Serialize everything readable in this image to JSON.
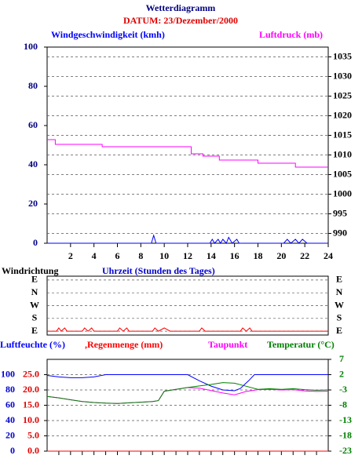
{
  "chart_data": [
    {
      "type": "line",
      "title": "Wetterdiagramm",
      "subtitle": "DATUM: 23/Dezember/2000",
      "xlim": [
        0,
        24
      ],
      "xticks": [
        2,
        4,
        6,
        8,
        10,
        12,
        14,
        16,
        18,
        20,
        22,
        24
      ],
      "xtick_labels": true,
      "ylim": [
        0,
        100
      ],
      "yticks": [
        0,
        20,
        40,
        60,
        80,
        100
      ],
      "y2lim": [
        987.5,
        1037.5
      ],
      "y2ticks": [
        990,
        995,
        1000,
        1005,
        1010,
        1015,
        1020,
        1025,
        1030,
        1035
      ],
      "grid": "y2",
      "series": [
        {
          "name": "Windgeschwindigkeit (kmh)",
          "color": "#0000ff",
          "axis": "y",
          "x": [
            0,
            8.9,
            9.1,
            9.3,
            13.9,
            14.1,
            14.3,
            14.6,
            14.8,
            15,
            15.3,
            15.5,
            15.8,
            16.2,
            16.4,
            20.2,
            20.5,
            20.8,
            21.2,
            21.5,
            21.8,
            22.2,
            24
          ],
          "values": [
            0,
            0,
            4,
            0,
            0,
            2,
            0,
            2,
            0,
            2,
            0,
            3,
            0,
            2,
            0,
            0,
            2,
            0,
            2,
            0,
            2,
            0,
            0
          ]
        },
        {
          "name": "Luftdruck (mb)",
          "color": "#ff00ff",
          "axis": "y2",
          "x": [
            0,
            0.7,
            0.7,
            4.7,
            4.7,
            12.3,
            12.3,
            13.3,
            13.3,
            14.7,
            14.7,
            18,
            18,
            21.2,
            21.2,
            24
          ],
          "values": [
            1013.9,
            1013.9,
            1012.7,
            1012.7,
            1012.1,
            1012.1,
            1010.3,
            1010.3,
            1009.7,
            1009.7,
            1008.7,
            1008.7,
            1007.9,
            1007.9,
            1006.9,
            1006.9
          ]
        }
      ]
    },
    {
      "type": "line",
      "xlabel": "Uhrzeit (Stunden des Tages)",
      "xlim": [
        0,
        24
      ],
      "ylim": [
        -0.3,
        4.3
      ],
      "ycategories": [
        "E",
        "S",
        "W",
        "N",
        "E"
      ],
      "grid": "y",
      "series": [
        {
          "name": "Windrichtung",
          "color": "#ff0000",
          "axis": "y",
          "x": [
            0,
            0.8,
            1,
            1.2,
            1.5,
            1.7,
            2,
            3,
            3.2,
            3.5,
            3.8,
            4,
            6,
            6.2,
            6.5,
            6.8,
            7,
            9,
            9.2,
            9.5,
            10,
            10.5,
            11,
            13,
            13.2,
            13.5,
            14,
            16.5,
            16.7,
            17,
            17.3,
            17.5,
            18,
            24
          ],
          "values": [
            0,
            0,
            0.25,
            0,
            0.25,
            0,
            0,
            0,
            0.25,
            0,
            0.25,
            0,
            0,
            0.25,
            0,
            0.25,
            0,
            0,
            0.25,
            0,
            0.25,
            0,
            0,
            0,
            0.25,
            0,
            0,
            0,
            0.25,
            0,
            0.25,
            0,
            0,
            0
          ]
        }
      ]
    },
    {
      "type": "line",
      "xlim": [
        0,
        24
      ],
      "xticks": [
        1,
        2,
        3,
        4,
        5,
        6,
        7,
        8,
        9,
        10,
        11,
        12,
        13,
        14,
        15,
        16,
        17,
        18,
        19,
        20,
        21,
        22,
        23
      ],
      "xtick_labels": false,
      "ylim": [
        0,
        120
      ],
      "yticks": [
        0,
        20,
        40,
        60,
        80,
        100
      ],
      "y3lim": [
        0,
        30
      ],
      "y3ticks": [
        {
          "value": 0,
          "label": "0.0"
        },
        {
          "value": 5,
          "label": "5.0"
        },
        {
          "value": 10,
          "label": "10.0"
        },
        {
          "value": 15,
          "label": "15.0"
        },
        {
          "value": 20,
          "label": "20.0"
        },
        {
          "value": 25,
          "label": "25.0"
        }
      ],
      "y2lim": [
        -23,
        7
      ],
      "y2ticks": [
        -23,
        -18,
        -13,
        -8,
        -3,
        2,
        7
      ],
      "grid": "y",
      "series": [
        {
          "name": "Luftfeuchte (%)",
          "color": "#0000ff",
          "axis": "y",
          "x": [
            0,
            1,
            2,
            3,
            4,
            5,
            6,
            8,
            10,
            12,
            13,
            14,
            15,
            16,
            16.5,
            17.2,
            17.7,
            20,
            22,
            24
          ],
          "values": [
            99,
            97,
            96,
            96,
            97,
            100,
            100,
            100,
            100,
            100,
            92,
            85,
            80,
            79,
            82,
            92,
            100,
            100,
            100,
            100
          ]
        },
        {
          "name": ",Regenmenge (mm)",
          "color": "#ff0000",
          "axis": "y3",
          "x": [
            0,
            24
          ],
          "values": [
            0,
            0
          ]
        },
        {
          "name": "Taupunkt",
          "color": "#ff00ff",
          "axis": "y2",
          "x": [
            0,
            1,
            2,
            3,
            4,
            5,
            6,
            7,
            8,
            9,
            9.5,
            10,
            11,
            12,
            13,
            14,
            15,
            16,
            17,
            18,
            19,
            20,
            21,
            22,
            23,
            24
          ],
          "values": [
            -5.1,
            -5.6,
            -6.2,
            -6.8,
            -7.1,
            -7.3,
            -7.4,
            -7.2,
            -7.0,
            -6.8,
            -6.5,
            -3.4,
            -2.8,
            -2.2,
            -2.4,
            -3.2,
            -4.0,
            -4.6,
            -3.5,
            -2.9,
            -2.8,
            -3.0,
            -2.9,
            -3.3,
            -3.5,
            -3.4
          ]
        },
        {
          "name": "Temperatur (°C)",
          "color": "#008000",
          "axis": "y2",
          "x": [
            0,
            1,
            2,
            3,
            4,
            5,
            6,
            7,
            8,
            9,
            9.5,
            10,
            11,
            12,
            13,
            14,
            15,
            16,
            17,
            18,
            19,
            20,
            21,
            22,
            23,
            24
          ],
          "values": [
            -5.1,
            -5.6,
            -6.2,
            -6.8,
            -7.1,
            -7.3,
            -7.4,
            -7.2,
            -7.0,
            -6.8,
            -6.5,
            -3.4,
            -2.8,
            -2.2,
            -1.7,
            -1.2,
            -0.6,
            -0.8,
            -1.8,
            -2.8,
            -2.6,
            -2.8,
            -2.6,
            -2.9,
            -3.1,
            -3.0
          ]
        }
      ]
    }
  ]
}
